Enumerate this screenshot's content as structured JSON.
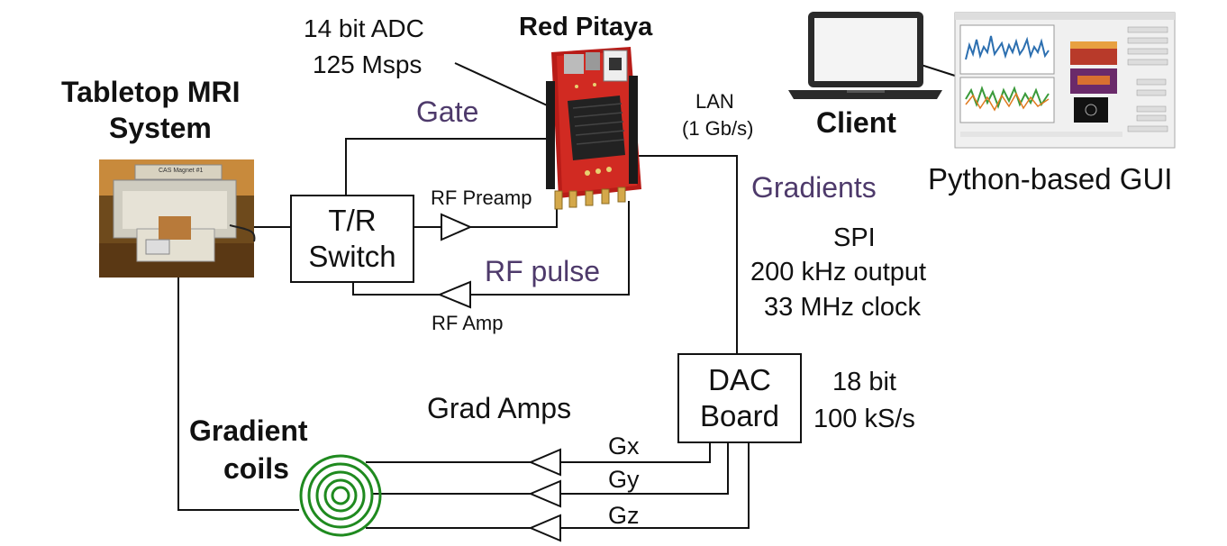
{
  "labels": {
    "adc_bits": "14 bit ADC",
    "adc_rate": "125 Msps",
    "red_pitaya": "Red Pitaya",
    "tabletop_line1": "Tabletop MRI",
    "tabletop_line2": "System",
    "gate": "Gate",
    "lan": "LAN",
    "lan_speed": "(1 Gb/s)",
    "client": "Client",
    "python_gui": "Python-based GUI",
    "gradients": "Gradients",
    "spi": "SPI",
    "spi_output": "200 kHz output",
    "spi_clock": "33 MHz clock",
    "rf_preamp": "RF Preamp",
    "rf_pulse": "RF pulse",
    "rf_amp": "RF Amp",
    "tr_line1": "T/R",
    "tr_line2": "Switch",
    "dac_line1": "DAC",
    "dac_line2": "Board",
    "dac_bits": "18 bit",
    "dac_rate": "100 kS/s",
    "grad_amps": "Grad Amps",
    "gx": "Gx",
    "gy": "Gy",
    "gz": "Gz",
    "gradient_line1": "Gradient",
    "gradient_line2": "coils",
    "magnet_plate": "CAS Magnet #1"
  },
  "colors": {
    "purple_text": "#4e3a6b",
    "coil_green": "#1f8a1f",
    "pcb_red": "#c0201c",
    "plot_blue": "#2c6fb0",
    "plot_green": "#3a9a3a",
    "plot_orange": "#e07a1f"
  },
  "icons": [
    "red-pitaya-board-image",
    "mri-system-photo",
    "laptop-icon",
    "gui-screenshot",
    "gradient-coil-icon",
    "amplifier-triangle-icon"
  ]
}
